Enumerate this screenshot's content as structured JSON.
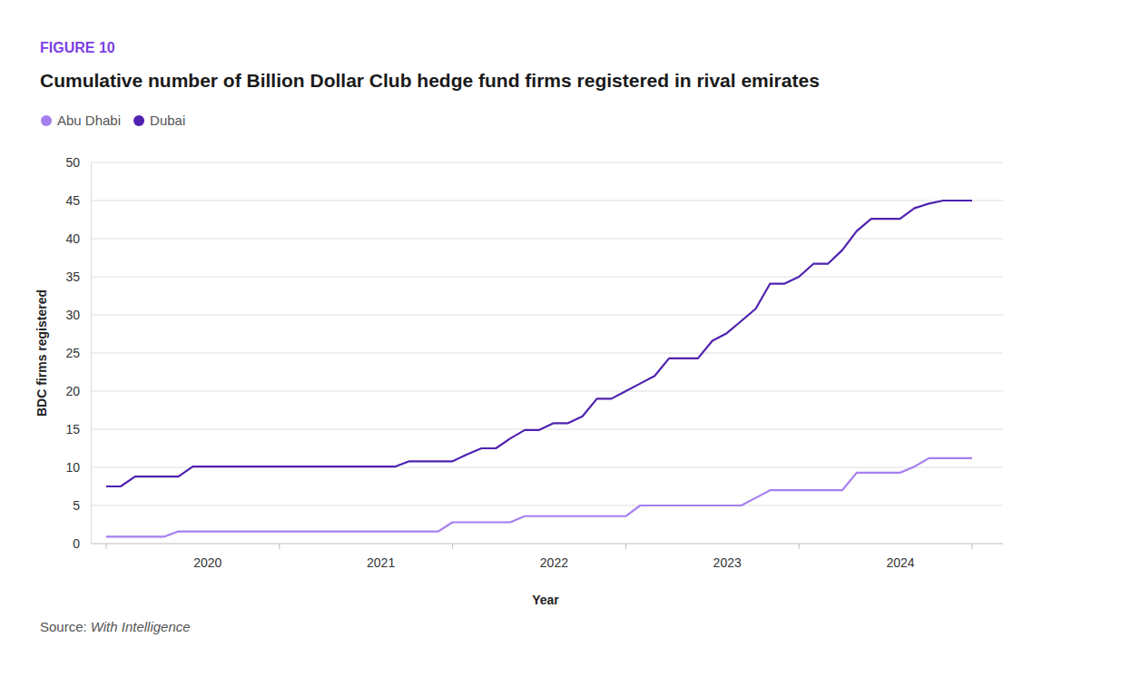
{
  "chart_data": {
    "type": "line",
    "figure_label": "FIGURE 10",
    "title": "Cumulative number of Billion Dollar Club hedge fund firms registered in rival emirates",
    "x_label": "Year",
    "y_label": "BDC firms registered",
    "source_label": "Source:",
    "source": "With Intelligence",
    "categories": [
      null,
      null,
      null,
      null,
      null,
      null,
      null,
      "2020",
      null,
      null,
      null,
      null,
      null,
      null,
      null,
      null,
      null,
      null,
      null,
      "2021",
      null,
      null,
      null,
      null,
      null,
      null,
      null,
      null,
      null,
      null,
      null,
      "2022",
      null,
      null,
      null,
      null,
      null,
      null,
      null,
      null,
      null,
      null,
      null,
      "2023",
      null,
      null,
      null,
      null,
      null,
      null,
      null,
      null,
      null,
      null,
      null,
      "2024",
      null,
      null,
      null,
      null,
      null
    ],
    "series": [
      {
        "name": "Abu Dhabi",
        "color": "#a67ff0",
        "values": [
          0.9,
          0.9,
          0.9,
          0.9,
          0.9,
          1.6,
          1.6,
          1.6,
          1.6,
          1.6,
          1.6,
          1.6,
          1.6,
          1.6,
          1.6,
          1.6,
          1.6,
          1.6,
          1.6,
          1.6,
          1.6,
          1.6,
          1.6,
          1.6,
          2.8,
          2.8,
          2.8,
          2.8,
          2.8,
          3.6,
          3.6,
          3.6,
          3.6,
          3.6,
          3.6,
          3.6,
          3.6,
          5.0,
          5.0,
          5.0,
          5.0,
          5.0,
          5.0,
          5.0,
          5.0,
          6.0,
          7.0,
          7.0,
          7.0,
          7.0,
          7.0,
          7.0,
          9.3,
          9.3,
          9.3,
          9.3,
          10.1,
          11.2,
          11.2,
          11.2,
          11.2
        ]
      },
      {
        "name": "Dubai",
        "color": "#4f22b0",
        "values": [
          7.5,
          7.5,
          8.8,
          8.8,
          8.8,
          8.8,
          10.1,
          10.1,
          10.1,
          10.1,
          10.1,
          10.1,
          10.1,
          10.1,
          10.1,
          10.1,
          10.1,
          10.1,
          10.1,
          10.1,
          10.1,
          10.8,
          10.8,
          10.8,
          10.8,
          11.7,
          12.5,
          12.5,
          13.8,
          14.9,
          14.9,
          15.8,
          15.8,
          16.7,
          19.0,
          19.0,
          20.0,
          21.0,
          22.0,
          24.3,
          24.3,
          24.3,
          26.6,
          27.6,
          29.2,
          30.8,
          34.1,
          34.1,
          35.0,
          36.7,
          36.7,
          38.5,
          41.0,
          42.6,
          42.6,
          42.6,
          44.0,
          44.6,
          45.0,
          45.0,
          45.0
        ]
      }
    ],
    "ylim": [
      0,
      50
    ],
    "yticks": [
      0,
      5,
      10,
      15,
      20,
      25,
      30,
      35,
      40,
      45,
      50
    ],
    "grid": true,
    "legend": "top-left"
  }
}
